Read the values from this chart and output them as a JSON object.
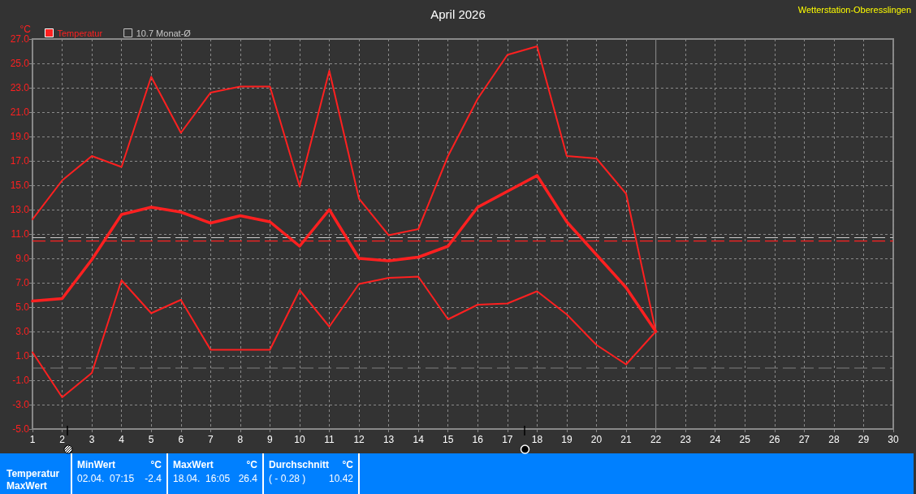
{
  "chart_data": {
    "type": "line",
    "title": "April 2026",
    "ylabel": "°C",
    "annotations": [
      "Wetterstation-Oberesslingen",
      "Temperatur",
      "MaxWert",
      "MinWert",
      "°C",
      "02.04.  07:15",
      "-2.4",
      "MaxWert",
      "°C",
      "18.04.  16:05",
      "26.4",
      "Durchschnitt",
      "°C",
      "( - 0.28 )",
      "10.42"
    ],
    "x": [
      1,
      2,
      3,
      4,
      5,
      6,
      7,
      8,
      9,
      10,
      11,
      12,
      13,
      14,
      15,
      16,
      17,
      18,
      19,
      20,
      21,
      22
    ],
    "series": [
      {
        "color": "#ff2020",
        "values": [
          12.2,
          15.4,
          17.4,
          16.5,
          23.9,
          19.3,
          22.6,
          23.1,
          23.1,
          14.9,
          24.4,
          13.9,
          10.9,
          11.4,
          17.4,
          22.1,
          25.7,
          26.4,
          17.4,
          17.2,
          14.3,
          3.0
        ]
      },
      {
        "name": "Temperatur",
        "color": "#ff2020",
        "values": [
          5.5,
          5.7,
          8.9,
          12.6,
          13.2,
          12.8,
          11.9,
          12.5,
          12.0,
          10.0,
          13.0,
          9.0,
          8.8,
          9.1,
          10.0,
          13.2,
          14.5,
          15.8,
          12.0,
          9.3,
          6.6,
          3.0
        ]
      },
      {
        "color": "#ff2020",
        "values": [
          1.3,
          -2.4,
          -0.4,
          7.2,
          4.5,
          5.6,
          1.5,
          1.5,
          1.5,
          6.4,
          3.4,
          6.9,
          7.4,
          7.5,
          4.0,
          5.2,
          5.3,
          6.3,
          4.4,
          1.9,
          0.3,
          3.0
        ]
      }
    ],
    "xlim": [
      1,
      30
    ],
    "xticks": [
      1,
      2,
      3,
      4,
      5,
      6,
      7,
      8,
      9,
      10,
      11,
      12,
      13,
      14,
      15,
      16,
      17,
      18,
      19,
      20,
      21,
      22,
      23,
      24,
      25,
      26,
      27,
      28,
      29,
      30
    ],
    "ylim": [
      -5,
      27
    ],
    "yticks": [
      {
        "value": -5,
        "label": "-5.0"
      },
      {
        "value": -3,
        "label": "-3.0"
      },
      {
        "value": -1,
        "label": "-1.0"
      },
      {
        "value": 1,
        "label": "1.0"
      },
      {
        "value": 3,
        "label": "3.0"
      },
      {
        "value": 5,
        "label": "5.0"
      },
      {
        "value": 7,
        "label": "7.0"
      },
      {
        "value": 9,
        "label": "9.0"
      },
      {
        "value": 11,
        "label": "11.0"
      },
      {
        "value": 13,
        "label": "13.0"
      },
      {
        "value": 15,
        "label": "15.0"
      },
      {
        "value": 17,
        "label": "17.0"
      },
      {
        "value": 19,
        "label": "19.0"
      },
      {
        "value": 21,
        "label": "21.0"
      },
      {
        "value": 23,
        "label": "23.0"
      },
      {
        "value": 25,
        "label": "25.0"
      },
      {
        "value": 27,
        "label": "27.0"
      }
    ],
    "ref_lines": [
      {
        "axis": "y",
        "value": 10.7,
        "label": "10.7 Monat-Ø",
        "color": "#c8c8c8",
        "line_style": "dashed"
      },
      {
        "axis": "y",
        "value": 10.42,
        "color": "#ff2020",
        "line_style": "dashed"
      },
      {
        "axis": "y",
        "value": 0,
        "color": "#808080",
        "line_style": "dashed"
      },
      {
        "axis": "x",
        "value": 22,
        "color": "#808080",
        "line_style": "solid"
      }
    ],
    "grid": true,
    "legend": "top left",
    "marker": "none",
    "line_style": "solid"
  }
}
